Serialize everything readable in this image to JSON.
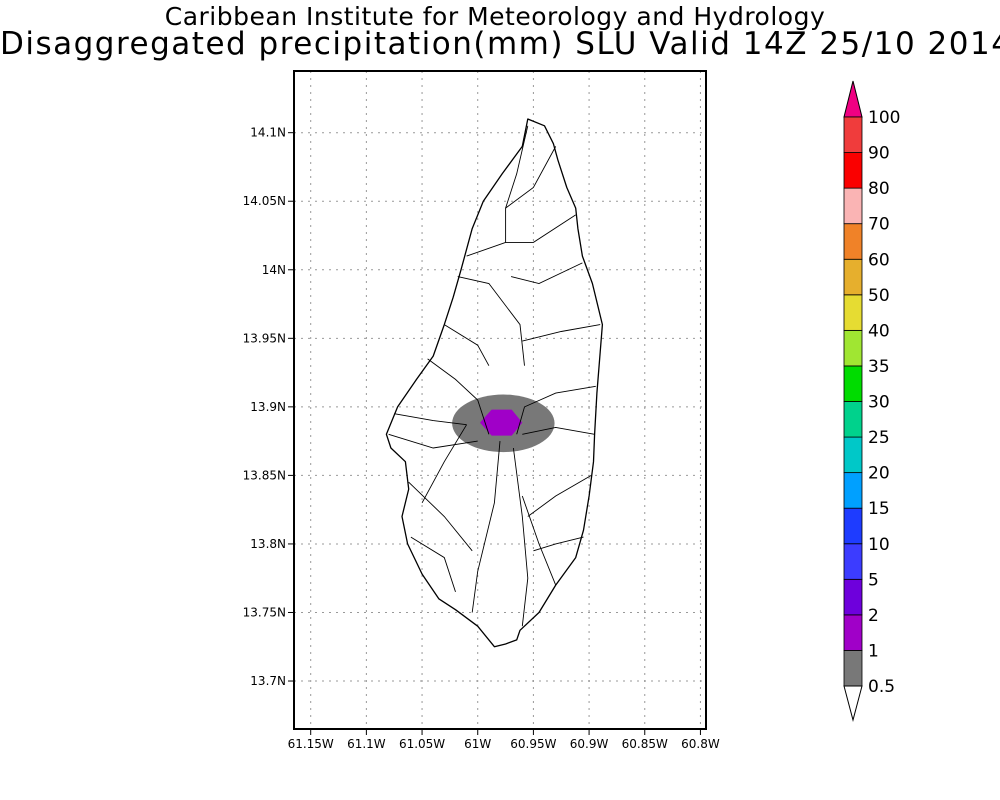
{
  "header": {
    "institution": "Caribbean Institute for Meteorology and Hydrology",
    "product": "Disaggregated precipitation(mm) SLU Valid 14Z 25/10 2014"
  },
  "map": {
    "region": "Saint Lucia",
    "lon_range": [
      -61.165,
      -60.795
    ],
    "lat_range": [
      13.665,
      14.145
    ],
    "grid": true,
    "lon_ticks": [
      {
        "value": -61.15,
        "label": "61.15W"
      },
      {
        "value": -61.1,
        "label": "61.1W"
      },
      {
        "value": -61.05,
        "label": "61.05W"
      },
      {
        "value": -61.0,
        "label": "61W"
      },
      {
        "value": -60.95,
        "label": "60.95W"
      },
      {
        "value": -60.9,
        "label": "60.9W"
      },
      {
        "value": -60.85,
        "label": "60.85W"
      },
      {
        "value": -60.8,
        "label": "60.8W"
      }
    ],
    "lat_ticks": [
      {
        "value": 14.1,
        "label": "14.1N"
      },
      {
        "value": 14.05,
        "label": "14.05N"
      },
      {
        "value": 14.0,
        "label": "14N"
      },
      {
        "value": 13.95,
        "label": "13.95N"
      },
      {
        "value": 13.9,
        "label": "13.9N"
      },
      {
        "value": 13.85,
        "label": "13.85N"
      },
      {
        "value": 13.8,
        "label": "13.8N"
      },
      {
        "value": 13.75,
        "label": "13.75N"
      },
      {
        "value": 13.7,
        "label": "13.7N"
      }
    ],
    "outline_lonlat": [
      [
        -60.955,
        14.11
      ],
      [
        -60.94,
        14.105
      ],
      [
        -60.932,
        14.092
      ],
      [
        -60.928,
        14.08
      ],
      [
        -60.92,
        14.06
      ],
      [
        -60.912,
        14.045
      ],
      [
        -60.91,
        14.03
      ],
      [
        -60.906,
        14.01
      ],
      [
        -60.897,
        13.99
      ],
      [
        -60.888,
        13.96
      ],
      [
        -60.89,
        13.94
      ],
      [
        -60.893,
        13.91
      ],
      [
        -60.895,
        13.88
      ],
      [
        -60.896,
        13.86
      ],
      [
        -60.9,
        13.835
      ],
      [
        -60.905,
        13.81
      ],
      [
        -60.912,
        13.79
      ],
      [
        -60.93,
        13.77
      ],
      [
        -60.945,
        13.75
      ],
      [
        -60.962,
        13.737
      ],
      [
        -60.965,
        13.73
      ],
      [
        -60.975,
        13.727
      ],
      [
        -60.985,
        13.725
      ],
      [
        -61.0,
        13.74
      ],
      [
        -61.02,
        13.752
      ],
      [
        -61.035,
        13.76
      ],
      [
        -61.05,
        13.778
      ],
      [
        -61.063,
        13.8
      ],
      [
        -61.068,
        13.82
      ],
      [
        -61.062,
        13.84
      ],
      [
        -61.065,
        13.86
      ],
      [
        -61.078,
        13.87
      ],
      [
        -61.082,
        13.88
      ],
      [
        -61.072,
        13.9
      ],
      [
        -61.055,
        13.92
      ],
      [
        -61.04,
        13.937
      ],
      [
        -61.03,
        13.96
      ],
      [
        -61.022,
        13.98
      ],
      [
        -61.015,
        14.0
      ],
      [
        -61.005,
        14.03
      ],
      [
        -60.995,
        14.05
      ],
      [
        -60.978,
        14.07
      ],
      [
        -60.96,
        14.09
      ]
    ],
    "rivers_lonlat": [
      [
        [
          -60.955,
          14.105
        ],
        [
          -60.965,
          14.07
        ],
        [
          -60.975,
          14.045
        ]
      ],
      [
        [
          -60.93,
          14.09
        ],
        [
          -60.95,
          14.06
        ],
        [
          -60.975,
          14.045
        ],
        [
          -60.975,
          14.02
        ],
        [
          -61.01,
          14.01
        ]
      ],
      [
        [
          -60.912,
          14.04
        ],
        [
          -60.95,
          14.02
        ],
        [
          -60.975,
          14.02
        ]
      ],
      [
        [
          -60.906,
          14.005
        ],
        [
          -60.945,
          13.99
        ],
        [
          -60.97,
          13.995
        ]
      ],
      [
        [
          -61.018,
          13.995
        ],
        [
          -60.99,
          13.99
        ],
        [
          -60.962,
          13.96
        ],
        [
          -60.958,
          13.93
        ]
      ],
      [
        [
          -60.89,
          13.96
        ],
        [
          -60.925,
          13.955
        ],
        [
          -60.96,
          13.948
        ]
      ],
      [
        [
          -61.03,
          13.96
        ],
        [
          -61.0,
          13.945
        ],
        [
          -60.99,
          13.93
        ]
      ],
      [
        [
          -61.045,
          13.935
        ],
        [
          -61.02,
          13.92
        ],
        [
          -61.0,
          13.905
        ],
        [
          -60.99,
          13.88
        ]
      ],
      [
        [
          -61.075,
          13.895
        ],
        [
          -61.04,
          13.89
        ],
        [
          -61.01,
          13.887
        ]
      ],
      [
        [
          -61.08,
          13.88
        ],
        [
          -61.04,
          13.87
        ],
        [
          -61.0,
          13.875
        ]
      ],
      [
        [
          -60.894,
          13.915
        ],
        [
          -60.93,
          13.91
        ],
        [
          -60.958,
          13.9
        ],
        [
          -60.965,
          13.88
        ]
      ],
      [
        [
          -60.895,
          13.88
        ],
        [
          -60.93,
          13.885
        ],
        [
          -60.96,
          13.88
        ]
      ],
      [
        [
          -60.98,
          13.875
        ],
        [
          -60.985,
          13.83
        ],
        [
          -61.0,
          13.78
        ],
        [
          -61.005,
          13.75
        ]
      ],
      [
        [
          -60.968,
          13.87
        ],
        [
          -60.96,
          13.82
        ],
        [
          -60.955,
          13.775
        ],
        [
          -60.96,
          13.74
        ]
      ],
      [
        [
          -61.062,
          13.845
        ],
        [
          -61.03,
          13.82
        ],
        [
          -61.005,
          13.795
        ]
      ],
      [
        [
          -61.06,
          13.805
        ],
        [
          -61.03,
          13.79
        ],
        [
          -61.02,
          13.765
        ]
      ],
      [
        [
          -60.898,
          13.85
        ],
        [
          -60.93,
          13.835
        ],
        [
          -60.955,
          13.82
        ]
      ],
      [
        [
          -60.905,
          13.805
        ],
        [
          -60.93,
          13.8
        ],
        [
          -60.95,
          13.795
        ]
      ],
      [
        [
          -60.93,
          13.77
        ],
        [
          -60.945,
          13.8
        ],
        [
          -60.96,
          13.835
        ]
      ],
      [
        [
          -61.01,
          13.887
        ],
        [
          -61.03,
          13.86
        ],
        [
          -61.05,
          13.83
        ]
      ]
    ],
    "shading": [
      {
        "level": "0.5-1",
        "color": "#787878",
        "center": [
          -60.977,
          13.888
        ],
        "radius_lon": 0.046,
        "radius_lat": 0.021
      },
      {
        "level": "1-2",
        "color": "#a000c8",
        "center": [
          -60.979,
          13.8885
        ],
        "radius_lon": 0.019,
        "radius_lat": 0.0095
      }
    ]
  },
  "colorbar": {
    "bins": [
      {
        "label": "0.5",
        "color": "#787878"
      },
      {
        "label": "1",
        "color": "#a000c8"
      },
      {
        "label": "2",
        "color": "#6e00dc"
      },
      {
        "label": "5",
        "color": "#3c3cff"
      },
      {
        "label": "10",
        "color": "#1e3cff"
      },
      {
        "label": "15",
        "color": "#00a0ff"
      },
      {
        "label": "20",
        "color": "#00c8c8"
      },
      {
        "label": "25",
        "color": "#00d28c"
      },
      {
        "label": "30",
        "color": "#00dc00"
      },
      {
        "label": "35",
        "color": "#a0e632"
      },
      {
        "label": "40",
        "color": "#e6dc32"
      },
      {
        "label": "50",
        "color": "#e6af2d"
      },
      {
        "label": "60",
        "color": "#f08228"
      },
      {
        "label": "70",
        "color": "#fab4b4"
      },
      {
        "label": "80",
        "color": "#fa0000"
      },
      {
        "label": "90",
        "color": "#f03c3c"
      },
      {
        "label": "100",
        "color": "#f00082"
      }
    ],
    "under_color": "#ffffff",
    "over_color": "#f00082"
  }
}
